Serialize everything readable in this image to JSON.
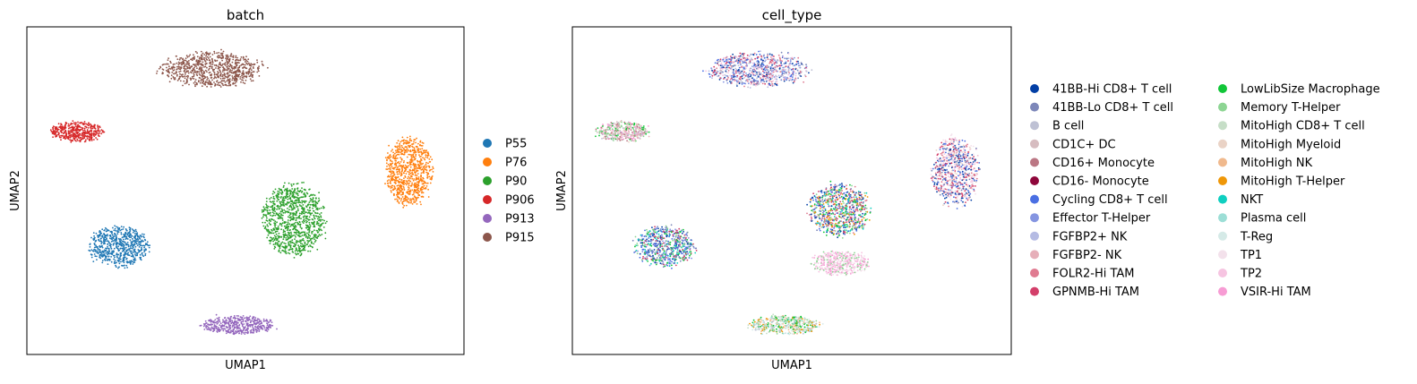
{
  "chart_data": [
    {
      "type": "scatter",
      "title": "batch",
      "xlabel": "UMAP1",
      "ylabel": "UMAP2",
      "grid": false,
      "legend_placement": "right",
      "legend": [
        {
          "label": "P55",
          "color": "#1f77b4"
        },
        {
          "label": "P76",
          "color": "#ff7f0e"
        },
        {
          "label": "P90",
          "color": "#2ca02c"
        },
        {
          "label": "P906",
          "color": "#d62728"
        },
        {
          "label": "P913",
          "color": "#9467bd"
        },
        {
          "label": "P915",
          "color": "#8c564b"
        }
      ],
      "clusters": [
        {
          "category": "P915",
          "center": [
            4.0,
            8.7
          ],
          "spread": [
            1.15,
            0.55
          ]
        },
        {
          "category": "P906",
          "center": [
            1.1,
            6.8
          ],
          "spread": [
            0.62,
            0.32
          ]
        },
        {
          "category": "P76",
          "center": [
            8.3,
            5.6
          ],
          "spread": [
            0.55,
            1.1
          ]
        },
        {
          "category": "P90",
          "center": [
            5.8,
            4.1
          ],
          "spread": [
            0.72,
            1.15
          ]
        },
        {
          "category": "P55",
          "center": [
            2.0,
            3.3
          ],
          "spread": [
            0.68,
            0.65
          ]
        },
        {
          "category": "P913",
          "center": [
            4.6,
            0.9
          ],
          "spread": [
            0.82,
            0.3
          ]
        }
      ]
    },
    {
      "type": "scatter",
      "title": "cell_type",
      "xlabel": "UMAP1",
      "ylabel": "UMAP2",
      "grid": false,
      "legend_placement": "right",
      "legend": [
        {
          "label": "41BB-Hi CD8+ T cell",
          "color": "#023fa5"
        },
        {
          "label": "41BB-Lo CD8+ T cell",
          "color": "#7d87b9"
        },
        {
          "label": "B cell",
          "color": "#bec1d4"
        },
        {
          "label": "CD1C+ DC",
          "color": "#d6bcc0"
        },
        {
          "label": "CD16+ Monocyte",
          "color": "#bb7784"
        },
        {
          "label": "CD16- Monocyte",
          "color": "#8e063b"
        },
        {
          "label": "Cycling CD8+ T cell",
          "color": "#4a6fe3"
        },
        {
          "label": "Effector T-Helper",
          "color": "#8595e1"
        },
        {
          "label": "FGFBP2+ NK",
          "color": "#b5bbe3"
        },
        {
          "label": "FGFBP2- NK",
          "color": "#e6afb9"
        },
        {
          "label": "FOLR2-Hi TAM",
          "color": "#e07b91"
        },
        {
          "label": "GPNMB-Hi TAM",
          "color": "#d33f6a"
        },
        {
          "label": "LowLibSize Macrophage",
          "color": "#11c638"
        },
        {
          "label": "Memory T-Helper",
          "color": "#8dd593"
        },
        {
          "label": "MitoHigh CD8+ T cell",
          "color": "#c6dec7"
        },
        {
          "label": "MitoHigh Myeloid",
          "color": "#ead3c6"
        },
        {
          "label": "MitoHigh NK",
          "color": "#f0b98d"
        },
        {
          "label": "MitoHigh T-Helper",
          "color": "#ef9708"
        },
        {
          "label": "NKT",
          "color": "#0fcfc0"
        },
        {
          "label": "Plasma cell",
          "color": "#9cded6"
        },
        {
          "label": "T-Reg",
          "color": "#d5eae7"
        },
        {
          "label": "TP1",
          "color": "#f3e1eb"
        },
        {
          "label": "TP2",
          "color": "#f6c4e1"
        },
        {
          "label": "VSIR-Hi TAM",
          "color": "#f79cd4"
        }
      ],
      "clusters": [
        {
          "center": [
            4.0,
            8.7
          ],
          "spread": [
            1.15,
            0.55
          ],
          "mix": [
            "#023fa5",
            "#4a6fe3",
            "#7d87b9",
            "#8595e1",
            "#d33f6a",
            "#b5bbe3",
            "#e07b91",
            "#bec1d4",
            "#f6c4e1"
          ]
        },
        {
          "center": [
            1.1,
            6.8
          ],
          "spread": [
            0.62,
            0.32
          ],
          "mix": [
            "#d6bcc0",
            "#e6afb9",
            "#bb7784",
            "#f79cd4",
            "#bec1d4",
            "#11c638",
            "#8dd593",
            "#ead3c6"
          ]
        },
        {
          "center": [
            8.3,
            5.6
          ],
          "spread": [
            0.55,
            1.1
          ],
          "mix": [
            "#f3e1eb",
            "#f6c4e1",
            "#d33f6a",
            "#7d87b9",
            "#e07b91",
            "#4a6fe3",
            "#023fa5",
            "#ead3c6"
          ]
        },
        {
          "center": [
            5.8,
            4.4
          ],
          "spread": [
            0.7,
            0.85
          ],
          "mix": [
            "#023fa5",
            "#4a6fe3",
            "#d33f6a",
            "#11c638",
            "#7d87b9",
            "#ef9708",
            "#0fcfc0",
            "#e07b91",
            "#8dd593"
          ]
        },
        {
          "center": [
            5.8,
            2.8
          ],
          "spread": [
            0.65,
            0.4
          ],
          "mix": [
            "#f6c4e1",
            "#f79cd4",
            "#f3e1eb",
            "#f6c4e1",
            "#8dd593"
          ]
        },
        {
          "center": [
            2.0,
            3.3
          ],
          "spread": [
            0.68,
            0.65
          ],
          "mix": [
            "#023fa5",
            "#4a6fe3",
            "#7d87b9",
            "#0fcfc0",
            "#11c638",
            "#d33f6a",
            "#8dd593",
            "#8595e1"
          ]
        },
        {
          "center": [
            4.6,
            0.9
          ],
          "spread": [
            0.82,
            0.3
          ],
          "mix": [
            "#11c638",
            "#8dd593",
            "#9cded6",
            "#ef9708",
            "#f0b98d",
            "#bec1d4",
            "#c6dec7",
            "#d5eae7"
          ]
        }
      ]
    }
  ]
}
